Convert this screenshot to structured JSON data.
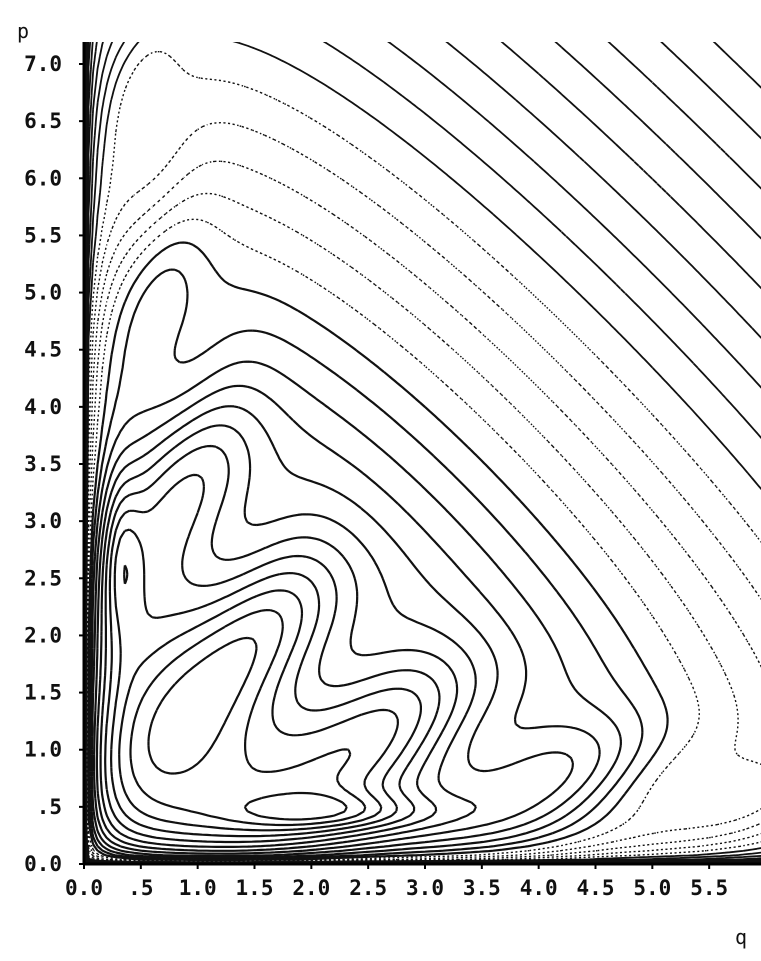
{
  "chart_data": {
    "type": "contour",
    "xlabel": "q",
    "ylabel": "p",
    "xlim": [
      0.0,
      5.85
    ],
    "ylim": [
      0.0,
      7.2
    ],
    "x_ticks": [
      "0.0",
      ".5",
      "1.0",
      "1.5",
      "2.0",
      "2.5",
      "3.0",
      "3.5",
      "4.0",
      "4.5",
      "5.0",
      "5.5"
    ],
    "x_tick_values": [
      0.0,
      0.5,
      1.0,
      1.5,
      2.0,
      2.5,
      3.0,
      3.5,
      4.0,
      4.5,
      5.0,
      5.5
    ],
    "y_ticks": [
      "0.0",
      ".5",
      "1.0",
      "1.5",
      "2.0",
      "2.5",
      "3.0",
      "3.5",
      "4.0",
      "4.5",
      "5.0",
      "5.5",
      "6.0",
      "6.5",
      "7.0"
    ],
    "y_tick_values": [
      0.0,
      0.5,
      1.0,
      1.5,
      2.0,
      2.5,
      3.0,
      3.5,
      4.0,
      4.5,
      5.0,
      5.5,
      6.0,
      6.5,
      7.0
    ],
    "line_styles": [
      "solid",
      "dotted",
      "dashed"
    ],
    "grid": false,
    "fixed_point": [
      1.0,
      1.1
    ]
  }
}
